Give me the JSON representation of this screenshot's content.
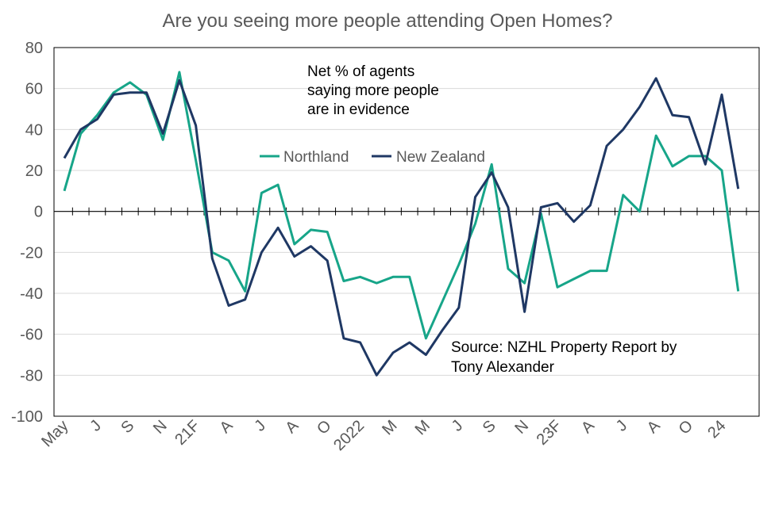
{
  "chart_data": {
    "type": "line",
    "title": "Are you seeing more people attending Open Homes?",
    "annotation": [
      "Net % of agents",
      "saying more people",
      "are in evidence"
    ],
    "source": [
      "Source: NZHL Property Report by",
      "Tony Alexander"
    ],
    "ylim": [
      -100,
      80
    ],
    "yticks": [
      80,
      60,
      40,
      20,
      0,
      -20,
      -40,
      -60,
      -80,
      -100
    ],
    "xtick_labels": [
      {
        "index": 0,
        "label": "May"
      },
      {
        "index": 2,
        "label": "J"
      },
      {
        "index": 4,
        "label": "S"
      },
      {
        "index": 6,
        "label": "N"
      },
      {
        "index": 8,
        "label": "21F"
      },
      {
        "index": 10,
        "label": "A"
      },
      {
        "index": 12,
        "label": "J"
      },
      {
        "index": 14,
        "label": "A"
      },
      {
        "index": 16,
        "label": "O"
      },
      {
        "index": 18,
        "label": "2022"
      },
      {
        "index": 20,
        "label": "M"
      },
      {
        "index": 22,
        "label": "M"
      },
      {
        "index": 24,
        "label": "J"
      },
      {
        "index": 26,
        "label": "S"
      },
      {
        "index": 28,
        "label": "N"
      },
      {
        "index": 30,
        "label": "23F"
      },
      {
        "index": 32,
        "label": "A"
      },
      {
        "index": 34,
        "label": "J"
      },
      {
        "index": 36,
        "label": "A"
      },
      {
        "index": 38,
        "label": "O"
      },
      {
        "index": 40,
        "label": "24"
      }
    ],
    "n_points": 42,
    "series": [
      {
        "name": "Northland",
        "color": "#17a589",
        "values": [
          10,
          38,
          47,
          58,
          63,
          57,
          35,
          68,
          25,
          -20,
          -24,
          -39,
          9,
          13,
          -16,
          -9,
          -10,
          -34,
          -32,
          -35,
          -32,
          -32,
          -62,
          -44,
          -26,
          -6,
          23,
          -28,
          -35,
          -1,
          -37,
          -33,
          -29,
          -29,
          8,
          0,
          37,
          22,
          27,
          27,
          20,
          -39
        ]
      },
      {
        "name": "New Zealand",
        "color": "#1f3864",
        "values": [
          26,
          40,
          45,
          57,
          58,
          58,
          38,
          64,
          42,
          -23,
          -46,
          -43,
          -20,
          -8,
          -22,
          -17,
          -24,
          -62,
          -64,
          -80,
          -69,
          -64,
          -70,
          -58,
          -47,
          7,
          19,
          2,
          -49,
          2,
          4,
          -5,
          3,
          32,
          40,
          51,
          65,
          47,
          46,
          23,
          57,
          11
        ]
      }
    ]
  }
}
